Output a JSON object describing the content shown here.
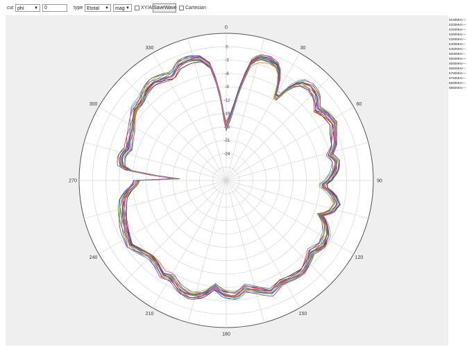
{
  "toolbar": {
    "cut_label": "cut",
    "cut_value": "phi",
    "cut_angle": "0",
    "type_label": "type",
    "type_value": "Etotal",
    "mode_value": "mag",
    "xyaf_label": "XY/AF",
    "savewave_label": "SaveWave",
    "cartesian_label": "Cartesian"
  },
  "chart_data": {
    "type": "polar-line",
    "angular_ticks": [
      "0",
      "30",
      "60",
      "90",
      "120",
      "150",
      "180",
      "210",
      "240",
      "270",
      "300",
      "330"
    ],
    "radial_ticks": [
      "0",
      "-3",
      "-6",
      "-9",
      "-12",
      "-15",
      "-18",
      "-21",
      "-24"
    ],
    "rlim": [
      -30,
      3
    ],
    "angle_direction": "clockwise",
    "zero_at": "top",
    "grid": true,
    "legend_position": "right",
    "series": [
      {
        "name": "5150MHz",
        "color": "#1a1a1a"
      },
      {
        "name": "5200MHz",
        "color": "#d62728"
      },
      {
        "name": "5250MHz",
        "color": "#2457c5"
      },
      {
        "name": "5300MHz",
        "color": "#3a9a3a"
      },
      {
        "name": "5350MHz",
        "color": "#8b2fb8"
      },
      {
        "name": "5400MHz",
        "color": "#e07b1a"
      },
      {
        "name": "5450MHz",
        "color": "#17a2b8"
      },
      {
        "name": "5500MHz",
        "color": "#c02d8a"
      },
      {
        "name": "5550MHz",
        "color": "#8b5a2b"
      },
      {
        "name": "5600MHz",
        "color": "#5a5a5a"
      },
      {
        "name": "5650MHz",
        "color": "#e84c4c"
      },
      {
        "name": "5700MHz",
        "color": "#4f6fd8"
      },
      {
        "name": "5750MHz",
        "color": "#d9a520"
      },
      {
        "name": "5800MHz",
        "color": "#2e8b57"
      },
      {
        "name": "5850MHz",
        "color": "#c66bd6"
      }
    ],
    "base_pattern_db": [
      [
        0,
        -18
      ],
      [
        5,
        -15
      ],
      [
        9,
        -8
      ],
      [
        12,
        -3
      ],
      [
        15,
        -1.5
      ],
      [
        20,
        -1.2
      ],
      [
        25,
        -2
      ],
      [
        29,
        -6
      ],
      [
        31,
        -10
      ],
      [
        33,
        -6
      ],
      [
        37,
        -2.5
      ],
      [
        42,
        -1.8
      ],
      [
        47,
        -2.2
      ],
      [
        52,
        -4
      ],
      [
        57,
        -3
      ],
      [
        62,
        -2.5
      ],
      [
        66,
        -3.5
      ],
      [
        72,
        -4.5
      ],
      [
        76,
        -6
      ],
      [
        80,
        -5
      ],
      [
        85,
        -5.5
      ],
      [
        90,
        -7
      ],
      [
        93,
        -8.5
      ],
      [
        97,
        -6
      ],
      [
        102,
        -4.5
      ],
      [
        107,
        -5.5
      ],
      [
        110,
        -7.5
      ],
      [
        113,
        -6
      ],
      [
        118,
        -4.5
      ],
      [
        124,
        -4
      ],
      [
        130,
        -5
      ],
      [
        135,
        -4
      ],
      [
        140,
        -3.2
      ],
      [
        146,
        -3.5
      ],
      [
        152,
        -4
      ],
      [
        158,
        -3
      ],
      [
        164,
        -4.5
      ],
      [
        170,
        -5.5
      ],
      [
        175,
        -4
      ],
      [
        181,
        -4.5
      ],
      [
        186,
        -6
      ],
      [
        191,
        -4
      ],
      [
        197,
        -3
      ],
      [
        203,
        -3.5
      ],
      [
        209,
        -5
      ],
      [
        214,
        -4.5
      ],
      [
        219,
        -5.5
      ],
      [
        225,
        -6
      ],
      [
        231,
        -5
      ],
      [
        236,
        -4
      ],
      [
        240,
        -4.5
      ],
      [
        246,
        -5
      ],
      [
        251,
        -5.5
      ],
      [
        256,
        -6
      ],
      [
        260,
        -6.5
      ],
      [
        264,
        -8
      ],
      [
        267,
        -9.5
      ],
      [
        270,
        -10
      ],
      [
        272,
        -19
      ],
      [
        273,
        -19
      ],
      [
        275,
        -9
      ],
      [
        278,
        -6.5
      ],
      [
        283,
        -6
      ],
      [
        288,
        -7
      ],
      [
        293,
        -6.5
      ],
      [
        298,
        -6
      ],
      [
        303,
        -5
      ],
      [
        308,
        -4
      ],
      [
        313,
        -4
      ],
      [
        318,
        -3
      ],
      [
        323,
        -2.5
      ],
      [
        328,
        -3
      ],
      [
        333,
        -3.5
      ],
      [
        338,
        -1.8
      ],
      [
        343,
        -1.5
      ],
      [
        348,
        -2
      ],
      [
        352,
        -4
      ],
      [
        355,
        -9
      ],
      [
        358,
        -16
      ],
      [
        360,
        -18
      ]
    ]
  }
}
